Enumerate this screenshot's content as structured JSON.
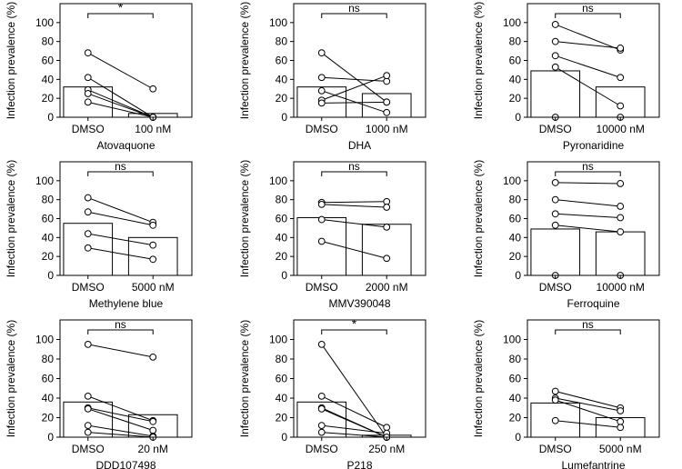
{
  "figure": {
    "ylabel": "Infection prevalence (%)",
    "group_labels": [
      "DMSO",
      ""
    ],
    "ylim": [
      0,
      120
    ],
    "yticks": [
      0,
      20,
      40,
      60,
      80,
      100
    ]
  },
  "chart_data": [
    {
      "type": "bar",
      "title": "Atovaquone",
      "categories": [
        "DMSO",
        "100 nM"
      ],
      "values": [
        32,
        4
      ],
      "paired": [
        [
          68,
          30
        ],
        [
          42,
          0
        ],
        [
          29,
          0
        ],
        [
          25,
          0
        ],
        [
          16,
          0
        ]
      ],
      "significance": "*",
      "xlabel": "Atovaquone",
      "ylabel": "Infection prevalence (%)",
      "ylim": [
        0,
        120
      ]
    },
    {
      "type": "bar",
      "title": "DHA",
      "categories": [
        "DMSO",
        "1000 nM"
      ],
      "values": [
        32,
        25
      ],
      "paired": [
        [
          68,
          16
        ],
        [
          42,
          38
        ],
        [
          28,
          5
        ],
        [
          18,
          44
        ],
        [
          15,
          16
        ]
      ],
      "significance": "ns",
      "xlabel": "DHA",
      "ylabel": "Infection prevalence (%)",
      "ylim": [
        0,
        120
      ]
    },
    {
      "type": "bar",
      "title": "Pyronaridine",
      "categories": [
        "DMSO",
        "10000 nM"
      ],
      "values": [
        49,
        32
      ],
      "paired": [
        [
          98,
          71
        ],
        [
          80,
          73
        ],
        [
          65,
          42
        ],
        [
          53,
          12
        ],
        [
          0,
          0
        ]
      ],
      "significance": "ns",
      "xlabel": "Pyronaridine",
      "ylabel": "Infection prevalence (%)",
      "ylim": [
        0,
        120
      ]
    },
    {
      "type": "bar",
      "title": "Methylene blue",
      "categories": [
        "DMSO",
        "5000 nM"
      ],
      "values": [
        55,
        40
      ],
      "paired": [
        [
          82,
          56
        ],
        [
          67,
          53
        ],
        [
          44,
          32
        ],
        [
          29,
          17
        ]
      ],
      "significance": "ns",
      "xlabel": "Methylene blue",
      "ylabel": "Infection prevalence (%)",
      "ylim": [
        0,
        120
      ]
    },
    {
      "type": "bar",
      "title": "MMV390048",
      "categories": [
        "DMSO",
        "2000 nM"
      ],
      "values": [
        61,
        54
      ],
      "paired": [
        [
          77,
          78
        ],
        [
          75,
          72
        ],
        [
          59,
          51
        ],
        [
          36,
          18
        ]
      ],
      "significance": "ns",
      "xlabel": "MMV390048",
      "ylabel": "Infection prevalence (%)",
      "ylim": [
        0,
        120
      ]
    },
    {
      "type": "bar",
      "title": "Ferroquine",
      "categories": [
        "DMSO",
        "10000 nM"
      ],
      "values": [
        49,
        46
      ],
      "paired": [
        [
          98,
          97
        ],
        [
          80,
          73
        ],
        [
          65,
          61
        ],
        [
          53,
          46
        ],
        [
          0,
          0
        ]
      ],
      "significance": "ns",
      "xlabel": "Ferroquine",
      "ylabel": "Infection prevalence (%)",
      "ylim": [
        0,
        120
      ]
    },
    {
      "type": "bar",
      "title": "DDD107498",
      "categories": [
        "DMSO",
        "20 nM"
      ],
      "values": [
        36,
        23
      ],
      "paired": [
        [
          95,
          82
        ],
        [
          42,
          17
        ],
        [
          30,
          16
        ],
        [
          29,
          7
        ],
        [
          12,
          1
        ],
        [
          5,
          0
        ]
      ],
      "significance": "ns",
      "xlabel": "DDD107498",
      "ylabel": "Infection prevalence (%)",
      "ylim": [
        0,
        120
      ]
    },
    {
      "type": "bar",
      "title": "P218",
      "categories": [
        "DMSO",
        "250 nM"
      ],
      "values": [
        36,
        2
      ],
      "paired": [
        [
          95,
          0
        ],
        [
          42,
          10
        ],
        [
          30,
          0
        ],
        [
          29,
          0
        ],
        [
          12,
          4
        ],
        [
          5,
          0
        ]
      ],
      "significance": "*",
      "xlabel": "P218",
      "ylabel": "Infection prevalence (%)",
      "ylim": [
        0,
        120
      ]
    },
    {
      "type": "bar",
      "title": "Lumefantrine",
      "categories": [
        "DMSO",
        "5000 nM"
      ],
      "values": [
        35,
        20
      ],
      "paired": [
        [
          47,
          30
        ],
        [
          40,
          27
        ],
        [
          38,
          16
        ],
        [
          17,
          10
        ]
      ],
      "significance": "ns",
      "xlabel": "Lumefantrine",
      "ylabel": "Infection prevalence (%)",
      "ylim": [
        0,
        120
      ]
    }
  ]
}
